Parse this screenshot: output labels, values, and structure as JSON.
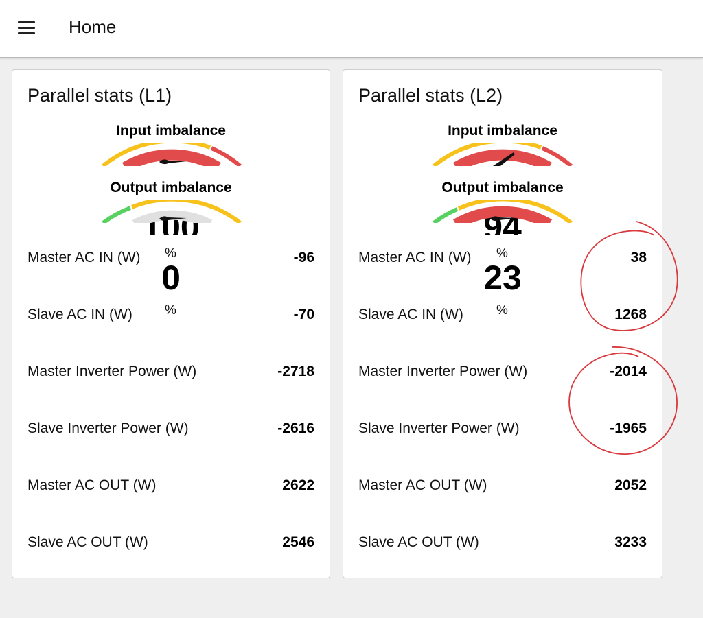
{
  "header": {
    "title": "Home",
    "menu_icon": "hamburger-menu-icon"
  },
  "cards": [
    {
      "title": "Parallel stats (L1)",
      "input_gauge": {
        "label": "Input imbalance",
        "value": "100",
        "unit": "%"
      },
      "output_gauge": {
        "label": "Output imbalance",
        "value": "0",
        "unit": "%"
      },
      "rows": [
        {
          "label": "Master AC IN (W)",
          "value": "-96"
        },
        {
          "label": "Slave AC IN (W)",
          "value": "-70"
        },
        {
          "label": "Master Inverter Power (W)",
          "value": "-2718"
        },
        {
          "label": "Slave Inverter Power (W)",
          "value": "-2616"
        },
        {
          "label": "Master AC OUT (W)",
          "value": "2622"
        },
        {
          "label": "Slave AC OUT (W)",
          "value": "2546"
        }
      ]
    },
    {
      "title": "Parallel stats (L2)",
      "input_gauge": {
        "label": "Input imbalance",
        "value": "94",
        "unit": "%"
      },
      "output_gauge": {
        "label": "Output imbalance",
        "value": "23",
        "unit": "%"
      },
      "rows": [
        {
          "label": "Master AC IN (W)",
          "value": "38"
        },
        {
          "label": "Slave AC IN (W)",
          "value": "1268"
        },
        {
          "label": "Master Inverter Power (W)",
          "value": "-2014"
        },
        {
          "label": "Slave Inverter Power (W)",
          "value": "-1965"
        },
        {
          "label": "Master AC OUT (W)",
          "value": "2052"
        },
        {
          "label": "Slave AC OUT (W)",
          "value": "3233"
        }
      ]
    }
  ],
  "colors": {
    "gauge_green": "#58d160",
    "gauge_yellow": "#f6c21b",
    "gauge_red": "#e24b4b",
    "annotation_red": "#d9383c"
  }
}
